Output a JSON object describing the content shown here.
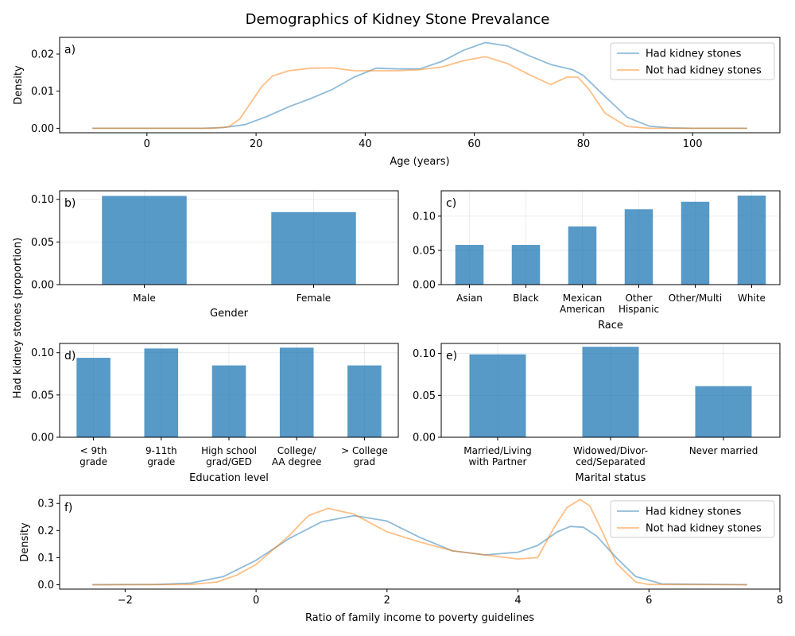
{
  "title": "Demographics of Kidney Stone Prevalance",
  "shared_ylabel": "Had kidney stones (proportion)",
  "colors": {
    "had": "#1f77b4",
    "not": "#ff7f0e",
    "bar": "#1f77b4"
  },
  "chart_data": [
    {
      "panel": "a)",
      "type": "line",
      "xlabel": "Age (years)",
      "ylabel": "Density",
      "xlim": [
        -16,
        116
      ],
      "ylim": [
        -0.0012,
        0.0245
      ],
      "xticks": [
        0,
        20,
        40,
        60,
        80,
        100
      ],
      "yticks": [
        0.0,
        0.01,
        0.02
      ],
      "ytick_labels": [
        "0.00",
        "0.01",
        "0.02"
      ],
      "legend": "top-right",
      "grid": false,
      "series": [
        {
          "name": "Had kidney stones",
          "color_key": "had",
          "x": [
            -10,
            10,
            14,
            18,
            22,
            26,
            30,
            34,
            38,
            42,
            46,
            50,
            54,
            58,
            62,
            66,
            70,
            74,
            78,
            80,
            84,
            88,
            92,
            96,
            100,
            110
          ],
          "y": [
            0,
            0,
            0.0002,
            0.001,
            0.0032,
            0.0058,
            0.008,
            0.0105,
            0.0138,
            0.0162,
            0.016,
            0.016,
            0.018,
            0.021,
            0.0231,
            0.0222,
            0.0196,
            0.0172,
            0.0158,
            0.0142,
            0.0085,
            0.003,
            0.0006,
            0.0001,
            0,
            0
          ]
        },
        {
          "name": "Not had kidney stones",
          "color_key": "not",
          "x": [
            -10,
            12,
            15,
            17,
            19,
            21,
            23,
            26,
            30,
            34,
            38,
            42,
            46,
            50,
            54,
            58,
            62,
            66,
            70,
            74,
            77,
            79,
            81,
            84,
            88,
            92,
            110
          ],
          "y": [
            0,
            0,
            0.0004,
            0.0025,
            0.0068,
            0.0112,
            0.0141,
            0.0155,
            0.0162,
            0.0163,
            0.0155,
            0.0155,
            0.0155,
            0.0158,
            0.0165,
            0.0182,
            0.0193,
            0.0175,
            0.0145,
            0.0118,
            0.0138,
            0.0138,
            0.0105,
            0.004,
            0.0005,
            0,
            0
          ]
        }
      ]
    },
    {
      "panel": "b)",
      "type": "bar",
      "xlabel": "Gender",
      "categories": [
        [
          "Male"
        ],
        [
          "Female"
        ]
      ],
      "values": [
        0.104,
        0.085
      ],
      "ylim": [
        0,
        0.11
      ],
      "yticks": [
        0.0,
        0.05,
        0.1
      ],
      "ytick_labels": [
        "0.00",
        "0.05",
        "0.10"
      ],
      "grid": true
    },
    {
      "panel": "c)",
      "type": "bar",
      "xlabel": "Race",
      "categories": [
        [
          "Asian"
        ],
        [
          "Black"
        ],
        [
          "Mexican",
          "American"
        ],
        [
          "Other",
          "Hispanic"
        ],
        [
          "Other/Multi"
        ],
        [
          "White"
        ]
      ],
      "values": [
        0.058,
        0.058,
        0.085,
        0.11,
        0.121,
        0.13
      ],
      "ylim": [
        0,
        0.137
      ],
      "yticks": [
        0.0,
        0.05,
        0.1
      ],
      "ytick_labels": [
        "0.00",
        "0.05",
        "0.10"
      ],
      "grid": true
    },
    {
      "panel": "d)",
      "type": "bar",
      "xlabel": "Education level",
      "categories": [
        [
          "< 9th",
          "grade"
        ],
        [
          "9-11th",
          "grade"
        ],
        [
          "High school",
          "grad/GED"
        ],
        [
          "College/",
          "AA degree"
        ],
        [
          "> College",
          "grad"
        ]
      ],
      "values": [
        0.094,
        0.105,
        0.085,
        0.106,
        0.085
      ],
      "ylim": [
        0,
        0.111
      ],
      "yticks": [
        0.0,
        0.05,
        0.1
      ],
      "ytick_labels": [
        "0.00",
        "0.05",
        "0.10"
      ],
      "grid": true
    },
    {
      "panel": "e)",
      "type": "bar",
      "xlabel": "Marital status",
      "categories": [
        [
          "Married/Living",
          "with Partner"
        ],
        [
          "Widowed/Divor-",
          "ced/Separated"
        ],
        [
          "Never married"
        ]
      ],
      "values": [
        0.099,
        0.108,
        0.061
      ],
      "ylim": [
        0,
        0.112
      ],
      "yticks": [
        0.0,
        0.05,
        0.1
      ],
      "ytick_labels": [
        "0.00",
        "0.05",
        "0.10"
      ],
      "grid": true
    },
    {
      "panel": "f)",
      "type": "line",
      "xlabel": "Ratio of family income to poverty guidelines",
      "ylabel": "Density",
      "xlim": [
        -3,
        8
      ],
      "ylim": [
        -0.016,
        0.33
      ],
      "xticks": [
        -2,
        0,
        2,
        4,
        6,
        8
      ],
      "xtick_labels": [
        "−2",
        "0",
        "2",
        "4",
        "6",
        "8"
      ],
      "yticks": [
        0.0,
        0.1,
        0.2,
        0.3
      ],
      "ytick_labels": [
        "0.0",
        "0.1",
        "0.2",
        "0.3"
      ],
      "legend": "top-right",
      "grid": false,
      "series": [
        {
          "name": "Had kidney stones",
          "color_key": "had",
          "x": [
            -2.5,
            -1.5,
            -1.0,
            -0.5,
            0.0,
            0.5,
            1.0,
            1.5,
            2.0,
            2.5,
            3.0,
            3.5,
            4.0,
            4.3,
            4.6,
            4.8,
            5.0,
            5.2,
            5.5,
            5.8,
            6.2,
            7.5
          ],
          "y": [
            0,
            0.001,
            0.006,
            0.03,
            0.09,
            0.17,
            0.232,
            0.255,
            0.235,
            0.175,
            0.125,
            0.11,
            0.12,
            0.145,
            0.195,
            0.215,
            0.212,
            0.18,
            0.1,
            0.03,
            0.003,
            0
          ]
        },
        {
          "name": "Not had kidney stones",
          "color_key": "not",
          "x": [
            -2.5,
            -1.0,
            -0.6,
            -0.3,
            0.0,
            0.5,
            0.8,
            1.1,
            1.5,
            2.0,
            2.5,
            3.0,
            3.5,
            4.0,
            4.3,
            4.55,
            4.75,
            4.95,
            5.1,
            5.3,
            5.5,
            5.8,
            6.0,
            7.5
          ],
          "y": [
            0,
            0.001,
            0.01,
            0.035,
            0.075,
            0.18,
            0.255,
            0.282,
            0.26,
            0.195,
            0.158,
            0.125,
            0.11,
            0.095,
            0.1,
            0.21,
            0.285,
            0.315,
            0.29,
            0.19,
            0.08,
            0.01,
            0.001,
            0
          ]
        }
      ]
    }
  ]
}
